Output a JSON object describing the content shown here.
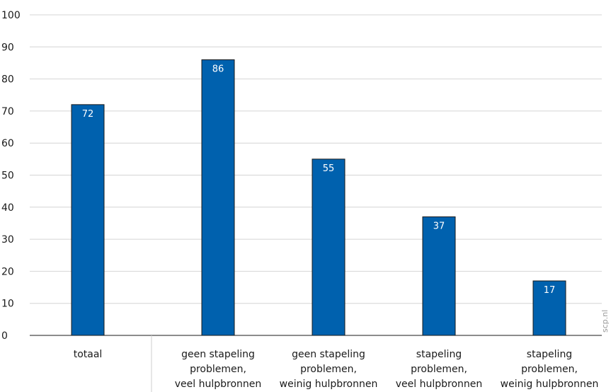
{
  "chart_data": {
    "type": "bar",
    "categories": [
      [
        "totaal"
      ],
      [
        "geen stapeling",
        "problemen,",
        "veel hulpbronnen"
      ],
      [
        "geen stapeling",
        "problemen,",
        "weinig hulpbronnen"
      ],
      [
        "stapeling",
        "problemen,",
        "veel hulpbronnen"
      ],
      [
        "stapeling",
        "problemen,",
        "weinig hulpbronnen"
      ]
    ],
    "values": [
      72,
      86,
      55,
      37,
      17
    ],
    "value_labels": [
      "72",
      "86",
      "55",
      "37",
      "17"
    ],
    "ylim": [
      0,
      100
    ],
    "yticks": [
      "0",
      "10",
      "20",
      "30",
      "40",
      "50",
      "60",
      "70",
      "80",
      "90",
      "100"
    ],
    "grid": true,
    "bar_color": "#0061ae",
    "label_color": "#ffffff"
  },
  "watermark": "scp.nl"
}
